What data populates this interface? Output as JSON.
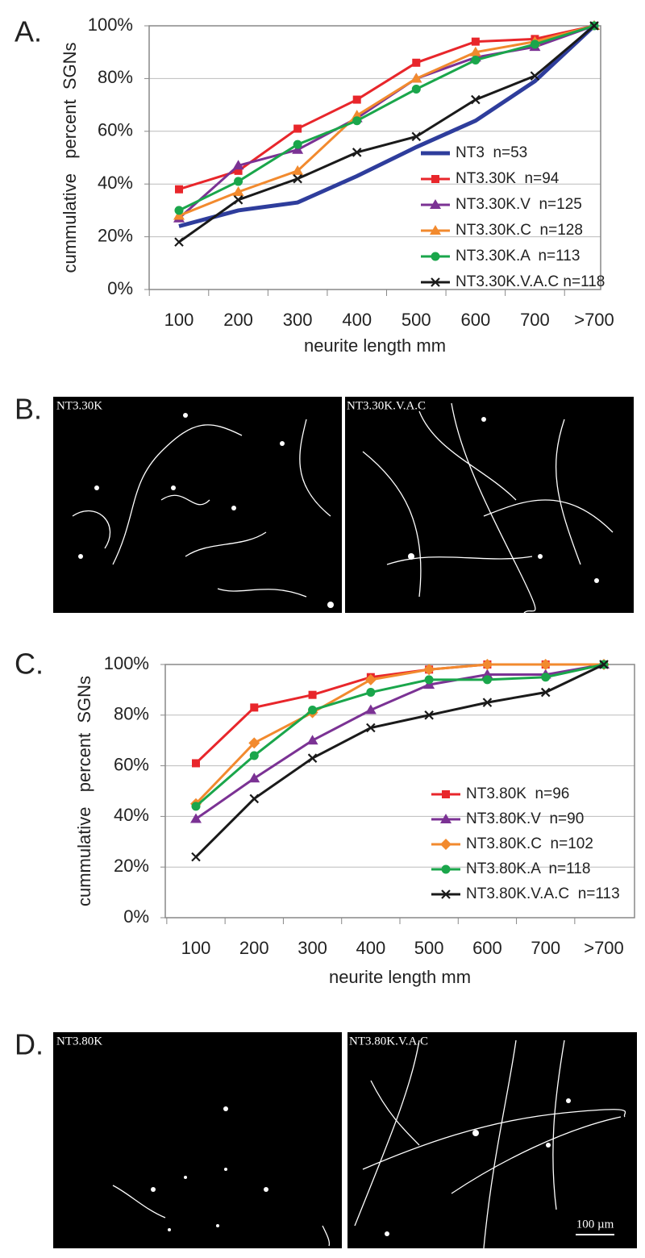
{
  "chart_data": [
    {
      "type": "line",
      "panel_label": "A.",
      "xlabel": "neurite length mm",
      "ylabel": "cummulative   percent  SGNs",
      "categories": [
        "100",
        "200",
        "300",
        "400",
        "500",
        "600",
        "700",
        ">700"
      ],
      "ylim": [
        0,
        100
      ],
      "yticks": [
        {
          "value": 0,
          "label": "0%"
        },
        {
          "value": 20,
          "label": "20%"
        },
        {
          "value": 40,
          "label": "40%"
        },
        {
          "value": 60,
          "label": "60%"
        },
        {
          "value": 80,
          "label": "80%"
        },
        {
          "value": 100,
          "label": "100%"
        }
      ],
      "grid": true,
      "legend": "lower right",
      "series": [
        {
          "name": "NT3  n=53",
          "color": "#2e3d9c",
          "marker": "none",
          "values": [
            24,
            30,
            33,
            43,
            54,
            64,
            79,
            100
          ]
        },
        {
          "name": "NT3.30K  n=94",
          "color": "#e8262b",
          "marker": "square",
          "values": [
            38,
            45,
            61,
            72,
            86,
            94,
            95,
            100
          ]
        },
        {
          "name": "NT3.30K.V  n=125",
          "color": "#7b3294",
          "marker": "triangle",
          "values": [
            27,
            47,
            53,
            65,
            80,
            88,
            92,
            100
          ]
        },
        {
          "name": "NT3.30K.C  n=128",
          "color": "#f28a2e",
          "marker": "triangle",
          "values": [
            28,
            37,
            45,
            66,
            80,
            90,
            94,
            100
          ]
        },
        {
          "name": "NT3.30K.A  n=113",
          "color": "#1aa64b",
          "marker": "circle",
          "values": [
            30,
            41,
            55,
            64,
            76,
            87,
            93,
            100
          ]
        },
        {
          "name": "NT3.30K.V.A.C n=118",
          "color": "#1a1a1a",
          "marker": "x",
          "values": [
            18,
            34,
            42,
            52,
            58,
            72,
            81,
            100
          ]
        }
      ]
    },
    {
      "type": "line",
      "panel_label": "C.",
      "xlabel": "neurite length mm",
      "ylabel": "cummulative   percent  SGNs",
      "categories": [
        "100",
        "200",
        "300",
        "400",
        "500",
        "600",
        "700",
        ">700"
      ],
      "ylim": [
        0,
        100
      ],
      "yticks": [
        {
          "value": 0,
          "label": "0%"
        },
        {
          "value": 20,
          "label": "20%"
        },
        {
          "value": 40,
          "label": "40%"
        },
        {
          "value": 60,
          "label": "60%"
        },
        {
          "value": 80,
          "label": "80%"
        },
        {
          "value": 100,
          "label": "100%"
        }
      ],
      "grid": true,
      "legend": "lower right",
      "series": [
        {
          "name": "NT3.80K  n=96",
          "color": "#e8262b",
          "marker": "square",
          "values": [
            61,
            83,
            88,
            95,
            98,
            100,
            100,
            100
          ]
        },
        {
          "name": "NT3.80K.V  n=90",
          "color": "#7b3294",
          "marker": "triangle",
          "values": [
            39,
            55,
            70,
            82,
            92,
            96,
            96,
            100
          ]
        },
        {
          "name": "NT3.80K.C  n=102",
          "color": "#f28a2e",
          "marker": "diamond",
          "values": [
            45,
            69,
            81,
            94,
            98,
            100,
            100,
            100
          ]
        },
        {
          "name": "NT3.80K.A  n=118",
          "color": "#1aa64b",
          "marker": "circle",
          "values": [
            44,
            64,
            82,
            89,
            94,
            94,
            95,
            100
          ]
        },
        {
          "name": "NT3.80K.V.A.C  n=113",
          "color": "#1a1a1a",
          "marker": "x",
          "values": [
            24,
            47,
            63,
            75,
            80,
            85,
            89,
            100
          ]
        }
      ]
    }
  ],
  "panels": [
    {
      "label": "B.",
      "images": [
        "NT3.30K",
        "NT3.30K.V.A.C"
      ]
    },
    {
      "label": "D.",
      "images": [
        "NT3.80K",
        "NT3.80K.V.A.C"
      ],
      "scale_bar": "100 µm"
    }
  ]
}
